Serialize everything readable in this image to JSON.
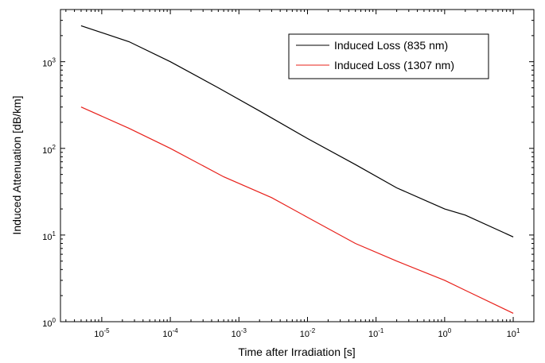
{
  "chart_data": {
    "type": "line",
    "xlabel": "Time after Irradiation [s]",
    "ylabel": "Induced Attenuation [dB/km]",
    "xscale": "log",
    "yscale": "log",
    "xlim": [
      2.5e-06,
      20
    ],
    "ylim": [
      1,
      4000
    ],
    "x_ticks": [
      {
        "base": "10",
        "exp": "-5",
        "value": 1e-05
      },
      {
        "base": "10",
        "exp": "-4",
        "value": 0.0001
      },
      {
        "base": "10",
        "exp": "-3",
        "value": 0.001
      },
      {
        "base": "10",
        "exp": "-2",
        "value": 0.01
      },
      {
        "base": "10",
        "exp": "-1",
        "value": 0.1
      },
      {
        "base": "10",
        "exp": "0",
        "value": 1
      },
      {
        "base": "10",
        "exp": "1",
        "value": 10
      }
    ],
    "y_ticks": [
      {
        "base": "10",
        "exp": "0",
        "value": 1
      },
      {
        "base": "10",
        "exp": "1",
        "value": 10
      },
      {
        "base": "10",
        "exp": "2",
        "value": 100
      },
      {
        "base": "10",
        "exp": "3",
        "value": 1000
      }
    ],
    "grid": false,
    "legend_position": "top-right",
    "series": [
      {
        "name": "Induced Loss (835 nm)",
        "color": "#000000",
        "x": [
          5e-06,
          2.5e-05,
          0.0001,
          0.0005,
          0.002,
          0.01,
          0.05,
          0.2,
          1,
          2,
          10
        ],
        "y": [
          2600,
          1700,
          1000,
          500,
          270,
          130,
          65,
          35,
          20,
          17,
          9.5
        ]
      },
      {
        "name": "Induced Loss (1307 nm)",
        "color": "#e8201a",
        "x": [
          5e-06,
          2.5e-05,
          0.0001,
          0.0006,
          0.003,
          0.01,
          0.05,
          0.2,
          1,
          2,
          10
        ],
        "y": [
          300,
          170,
          100,
          47,
          27,
          16,
          8,
          5,
          3,
          2.3,
          1.25
        ]
      }
    ]
  }
}
